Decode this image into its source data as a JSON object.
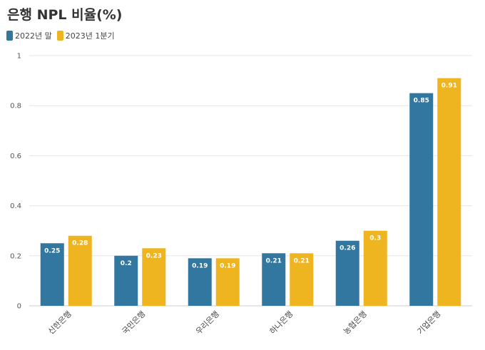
{
  "chart_data": {
    "type": "bar",
    "title": "은행 NPL 비율(%)",
    "categories": [
      "신한은행",
      "국민은행",
      "우리은행",
      "하나은행",
      "농협은행",
      "기업은행"
    ],
    "series": [
      {
        "name": "2022년 말",
        "color": "#3277a0",
        "values": [
          0.25,
          0.2,
          0.19,
          0.21,
          0.26,
          0.85
        ]
      },
      {
        "name": "2023년 1분기",
        "color": "#efb521",
        "values": [
          0.28,
          0.23,
          0.19,
          0.21,
          0.3,
          0.91
        ]
      }
    ],
    "ylim": [
      0,
      1
    ],
    "yticks": [
      0,
      0.2,
      0.4,
      0.6,
      0.8,
      1
    ],
    "xlabel": "",
    "ylabel": "",
    "grid": true,
    "legend_position": "top-left"
  }
}
